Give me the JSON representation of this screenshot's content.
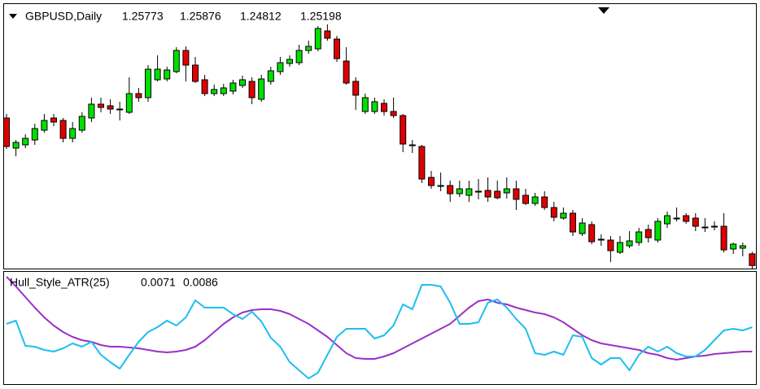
{
  "chart_data": [
    {
      "type": "candlestick",
      "title": "GBPUSD,Daily",
      "open": [
        1.3245,
        1.3097,
        1.3113,
        1.3137,
        1.3185,
        1.3245,
        1.3233,
        1.3145,
        1.3185,
        1.3245,
        1.3313,
        1.3305,
        1.3289,
        1.3273,
        1.3365,
        1.3345,
        1.3433,
        1.3437,
        1.3473,
        1.3577,
        1.3505,
        1.3433,
        1.3365,
        1.3365,
        1.3377,
        1.3405,
        1.3425,
        1.3337,
        1.3425,
        1.3473,
        1.3513,
        1.3517,
        1.3577,
        1.3585,
        1.3673,
        1.3633,
        1.3525,
        1.3425,
        1.3277,
        1.3277,
        1.3317,
        1.3277,
        1.3257,
        1.3113,
        1.3105,
        1.2953,
        1.2913,
        1.2913,
        1.2873,
        1.2865,
        1.2885,
        1.2889,
        1.2885,
        1.2877,
        1.2897,
        1.2865,
        1.2825,
        1.2857,
        1.2805,
        1.2753,
        1.2777,
        1.2677,
        1.2721,
        1.2649,
        1.2645,
        1.2585,
        1.2617,
        1.2633,
        1.2697,
        1.2645,
        1.2725,
        1.2753,
        1.2765,
        1.2753,
        1.2709,
        1.2713,
        1.2713,
        1.2601,
        1.2605,
        1.25773
      ],
      "high": [
        1.3265,
        1.3137,
        1.3165,
        1.3217,
        1.3265,
        1.3265,
        1.3245,
        1.3225,
        1.3273,
        1.3345,
        1.3345,
        1.3337,
        1.3325,
        1.3445,
        1.3393,
        1.3505,
        1.3553,
        1.3497,
        1.3593,
        1.3597,
        1.3545,
        1.3457,
        1.3409,
        1.3413,
        1.3433,
        1.3453,
        1.3445,
        1.3457,
        1.3497,
        1.3545,
        1.3553,
        1.3605,
        1.3625,
        1.3697,
        1.3705,
        1.3649,
        1.3593,
        1.3445,
        1.3365,
        1.3345,
        1.3337,
        1.3345,
        1.3265,
        1.3137,
        1.3113,
        1.2985,
        1.2977,
        1.2937,
        1.2937,
        1.2937,
        1.2945,
        1.2953,
        1.2937,
        1.2953,
        1.2937,
        1.2897,
        1.2877,
        1.2885,
        1.2833,
        1.2805,
        1.2793,
        1.2753,
        1.2737,
        1.2673,
        1.2665,
        1.2665,
        1.2689,
        1.2705,
        1.2721,
        1.2753,
        1.2785,
        1.2805,
        1.2777,
        1.2777,
        1.2753,
        1.2737,
        1.2777,
        1.2633,
        1.2633,
        1.25876
      ],
      "low": [
        1.3093,
        1.3057,
        1.3097,
        1.3113,
        1.3173,
        1.3205,
        1.3125,
        1.3125,
        1.3173,
        1.3225,
        1.3273,
        1.3265,
        1.3233,
        1.3265,
        1.3325,
        1.3325,
        1.3425,
        1.3425,
        1.3465,
        1.3425,
        1.3417,
        1.3353,
        1.3353,
        1.3353,
        1.3361,
        1.3393,
        1.3313,
        1.3325,
        1.3409,
        1.3457,
        1.3497,
        1.3505,
        1.3561,
        1.3573,
        1.3625,
        1.3521,
        1.3409,
        1.3285,
        1.3265,
        1.3265,
        1.3257,
        1.3245,
        1.3077,
        1.3073,
        1.2925,
        1.2897,
        1.2885,
        1.2833,
        1.2857,
        1.2833,
        1.2845,
        1.2833,
        1.2845,
        1.2849,
        1.2793,
        1.2817,
        1.2813,
        1.2793,
        1.2737,
        1.2745,
        1.2665,
        1.2665,
        1.2625,
        1.2617,
        1.2537,
        1.2577,
        1.2605,
        1.2617,
        1.2633,
        1.2633,
        1.2705,
        1.2737,
        1.2725,
        1.2689,
        1.2685,
        1.2693,
        1.2585,
        1.2577,
        1.2565,
        1.24812
      ],
      "close": [
        1.3105,
        1.3125,
        1.3145,
        1.3193,
        1.3233,
        1.3225,
        1.3145,
        1.3193,
        1.3253,
        1.3313,
        1.3297,
        1.3289,
        1.3289,
        1.3365,
        1.3345,
        1.3485,
        1.3485,
        1.3481,
        1.3577,
        1.3505,
        1.3425,
        1.3365,
        1.3385,
        1.3393,
        1.3417,
        1.3433,
        1.3345,
        1.3437,
        1.3477,
        1.3517,
        1.3533,
        1.3577,
        1.3597,
        1.3685,
        1.3637,
        1.3537,
        1.3417,
        1.3357,
        1.3345,
        1.3325,
        1.3277,
        1.3257,
        1.3117,
        1.3113,
        1.2945,
        1.2913,
        1.2913,
        1.2873,
        1.2897,
        1.2897,
        1.2885,
        1.2857,
        1.2853,
        1.2897,
        1.2845,
        1.2825,
        1.2857,
        1.2805,
        1.2757,
        1.2777,
        1.2685,
        1.2729,
        1.2637,
        1.2649,
        1.2593,
        1.2633,
        1.2641,
        1.2685,
        1.2657,
        1.2737,
        1.2765,
        1.2753,
        1.2737,
        1.2713,
        1.2709,
        1.2713,
        1.2597,
        1.2625,
        1.2617,
        1.25198
      ],
      "up_color": "#00e000",
      "down_color": "#e00000",
      "ylim": [
        1.2505,
        1.3705
      ]
    },
    {
      "type": "line",
      "title": "Hull_Style_ATR(25)",
      "series": [
        {
          "color": "#9b30c8",
          "values": [
            0.0117,
            0.0111,
            0.01045,
            0.0098,
            0.0092,
            0.0087,
            0.0083,
            0.008,
            0.0078,
            0.0077,
            0.0075,
            0.0074,
            0.0074,
            0.00735,
            0.0073,
            0.0072,
            0.0071,
            0.00705,
            0.0071,
            0.0072,
            0.0074,
            0.0078,
            0.0083,
            0.0088,
            0.0092,
            0.0095,
            0.00965,
            0.0097,
            0.0097,
            0.0096,
            0.0094,
            0.0091,
            0.0088,
            0.0084,
            0.008,
            0.0075,
            0.007,
            0.0067,
            0.00665,
            0.00665,
            0.0068,
            0.007,
            0.0073,
            0.0076,
            0.0079,
            0.0082,
            0.0085,
            0.0088,
            0.0093,
            0.0098,
            0.0102,
            0.0103,
            0.0101,
            0.01,
            0.0098,
            0.00965,
            0.0095,
            0.0094,
            0.0092,
            0.0089,
            0.0085,
            0.0081,
            0.0078,
            0.0076,
            0.0075,
            0.0074,
            0.0073,
            0.0072,
            0.007,
            0.0069,
            0.0067,
            0.0066,
            0.0067,
            0.0068,
            0.00685,
            0.00695,
            0.007,
            0.00705,
            0.0071,
            0.0071
          ]
        },
        {
          "color": "#1ebef0",
          "values": [
            0.0088,
            0.009,
            0.00745,
            0.0074,
            0.0072,
            0.0071,
            0.0073,
            0.0076,
            0.0074,
            0.0077,
            0.0069,
            0.00645,
            0.00605,
            0.0069,
            0.0077,
            0.0083,
            0.0086,
            0.009,
            0.0087,
            0.0092,
            0.01025,
            0.0098,
            0.0098,
            0.0098,
            0.0094,
            0.0091,
            0.00955,
            0.00895,
            0.00795,
            0.0074,
            0.00645,
            0.00595,
            0.00545,
            0.0058,
            0.0069,
            0.008,
            0.0085,
            0.0085,
            0.0085,
            0.0079,
            0.0081,
            0.0087,
            0.01,
            0.0097,
            0.0112,
            0.0112,
            0.0111,
            0.0101,
            0.0088,
            0.0088,
            0.0089,
            0.0101,
            0.0103,
            0.0098,
            0.0091,
            0.0085,
            0.007,
            0.0069,
            0.0071,
            0.0069,
            0.0081,
            0.008,
            0.0067,
            0.0063,
            0.0067,
            0.0067,
            0.00595,
            0.0069,
            0.0074,
            0.0071,
            0.0074,
            0.007,
            0.0068,
            0.0068,
            0.0072,
            0.0078,
            0.0084,
            0.0085,
            0.0084,
            0.0086
          ]
        }
      ],
      "ylim": [
        0.0051,
        0.012
      ]
    }
  ]
}
